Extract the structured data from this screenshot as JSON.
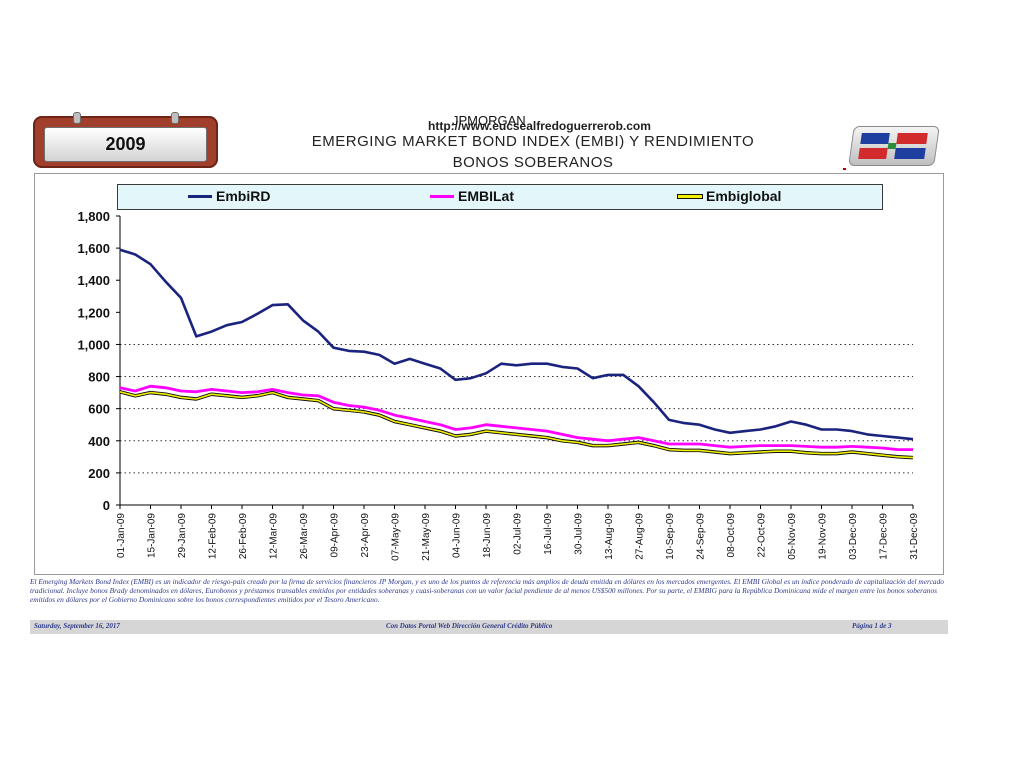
{
  "header": {
    "year_badge": "2009",
    "source_label": "JPMORGAN",
    "website": "http://www.eucsealfredoguerrerob.com",
    "title_line1": "EMERGING MARKET BOND INDEX (EMBI) Y RENDIMIENTO",
    "title_line2": "BONOS SOBERANOS"
  },
  "colors": {
    "EmbiRD": "#1a237e",
    "EMBILat": "#ff00ff",
    "Embiglobal": "#f2f200",
    "Embiglobal_outline": "#111111",
    "badge": "#a0402c",
    "legend_bg": "#e3f7fb",
    "footer_text": "#2e3a8c"
  },
  "chart_data": {
    "type": "line",
    "title": "EMERGING MARKET BOND INDEX (EMBI) Y RENDIMIENTO BONOS SOBERANOS",
    "xlabel": "",
    "ylabel": "",
    "ylim": [
      0,
      1800
    ],
    "yticks": [
      0,
      200,
      400,
      600,
      800,
      1000,
      1200,
      1400,
      1600,
      1800
    ],
    "ytick_labels": [
      "0",
      "200",
      "400",
      "600",
      "800",
      "1,000",
      "1,200",
      "1,400",
      "1,600",
      "1,800"
    ],
    "grid": "dotted horizontal at 200, 400, 600, 800, 1,000",
    "legend_position": "top",
    "x_tick_labels": [
      "01-Jan-09",
      "15-Jan-09",
      "29-Jan-09",
      "12-Feb-09",
      "26-Feb-09",
      "12-Mar-09",
      "26-Mar-09",
      "09-Apr-09",
      "23-Apr-09",
      "07-May-09",
      "21-May-09",
      "04-Jun-09",
      "18-Jun-09",
      "02-Jul-09",
      "16-Jul-09",
      "30-Jul-09",
      "13-Aug-09",
      "27-Aug-09",
      "10-Sep-09",
      "24-Sep-09",
      "08-Oct-09",
      "22-Oct-09",
      "05-Nov-09",
      "19-Nov-09",
      "03-Dec-09",
      "17-Dec-09",
      "31-Dec-09"
    ],
    "x": [
      "01-Jan-09",
      "08-Jan-09",
      "15-Jan-09",
      "22-Jan-09",
      "29-Jan-09",
      "05-Feb-09",
      "12-Feb-09",
      "19-Feb-09",
      "26-Feb-09",
      "05-Mar-09",
      "12-Mar-09",
      "19-Mar-09",
      "26-Mar-09",
      "02-Apr-09",
      "09-Apr-09",
      "16-Apr-09",
      "23-Apr-09",
      "30-Apr-09",
      "07-May-09",
      "14-May-09",
      "21-May-09",
      "28-May-09",
      "04-Jun-09",
      "11-Jun-09",
      "18-Jun-09",
      "25-Jun-09",
      "02-Jul-09",
      "09-Jul-09",
      "16-Jul-09",
      "23-Jul-09",
      "30-Jul-09",
      "06-Aug-09",
      "13-Aug-09",
      "20-Aug-09",
      "27-Aug-09",
      "03-Sep-09",
      "10-Sep-09",
      "17-Sep-09",
      "24-Sep-09",
      "01-Oct-09",
      "08-Oct-09",
      "15-Oct-09",
      "22-Oct-09",
      "29-Oct-09",
      "05-Nov-09",
      "12-Nov-09",
      "19-Nov-09",
      "26-Nov-09",
      "03-Dec-09",
      "10-Dec-09",
      "17-Dec-09",
      "24-Dec-09",
      "31-Dec-09"
    ],
    "series": [
      {
        "name": "EmbiRD",
        "values": [
          1590,
          1560,
          1500,
          1390,
          1290,
          1050,
          1080,
          1120,
          1140,
          1190,
          1245,
          1250,
          1150,
          1080,
          980,
          960,
          955,
          935,
          880,
          910,
          880,
          850,
          780,
          790,
          820,
          880,
          870,
          880,
          880,
          860,
          850,
          790,
          810,
          810,
          740,
          640,
          530,
          510,
          500,
          470,
          450,
          460,
          470,
          490,
          520,
          500,
          470,
          470,
          460,
          440,
          430,
          420,
          410
        ]
      },
      {
        "name": "EMBILat",
        "values": [
          730,
          710,
          740,
          730,
          710,
          705,
          720,
          710,
          700,
          705,
          720,
          700,
          685,
          680,
          640,
          620,
          610,
          590,
          560,
          540,
          520,
          500,
          470,
          480,
          500,
          490,
          480,
          470,
          460,
          440,
          420,
          410,
          400,
          410,
          420,
          400,
          380,
          380,
          380,
          370,
          360,
          365,
          370,
          370,
          370,
          365,
          360,
          360,
          365,
          360,
          355,
          345,
          345
        ]
      },
      {
        "name": "Embiglobal",
        "values": [
          705,
          680,
          700,
          690,
          670,
          660,
          690,
          680,
          670,
          680,
          700,
          670,
          660,
          650,
          600,
          590,
          580,
          560,
          520,
          500,
          480,
          460,
          430,
          440,
          460,
          450,
          440,
          430,
          420,
          400,
          390,
          370,
          370,
          380,
          390,
          370,
          345,
          340,
          340,
          330,
          320,
          325,
          330,
          335,
          335,
          325,
          320,
          320,
          330,
          320,
          310,
          300,
          295
        ]
      }
    ]
  },
  "note": "El Emerging Markets Bond Index (EMBI) es un indicador de riesgo-país creado por la firma de servicios financieros JP Morgan, y es uno de los puntos de referencia más amplios de deuda emitida en dólares en los mercados emergentes. El EMBI Global es un índice ponderado de capitalización del mercado tradicional. Incluye bonos Brady denominados en dólares, Eurobonos y préstamos transables emitidos por entidades soberanas y cuasi-soberanas con un valor facial pendiente de al menos US$500 millones. Por su parte, el EMBIG para la República Dominicana mide el margen entre los bonos soberanos emitidos en dólares por el Gobierno Dominicano sobre los bonos correspondientes emitidos por el Tesoro Americano.",
  "footer": {
    "date": "Saturday, September 16, 2017",
    "source": "Con Datos Portal Web Dirección General Crédito Público",
    "page": "Página 1 de 3"
  }
}
